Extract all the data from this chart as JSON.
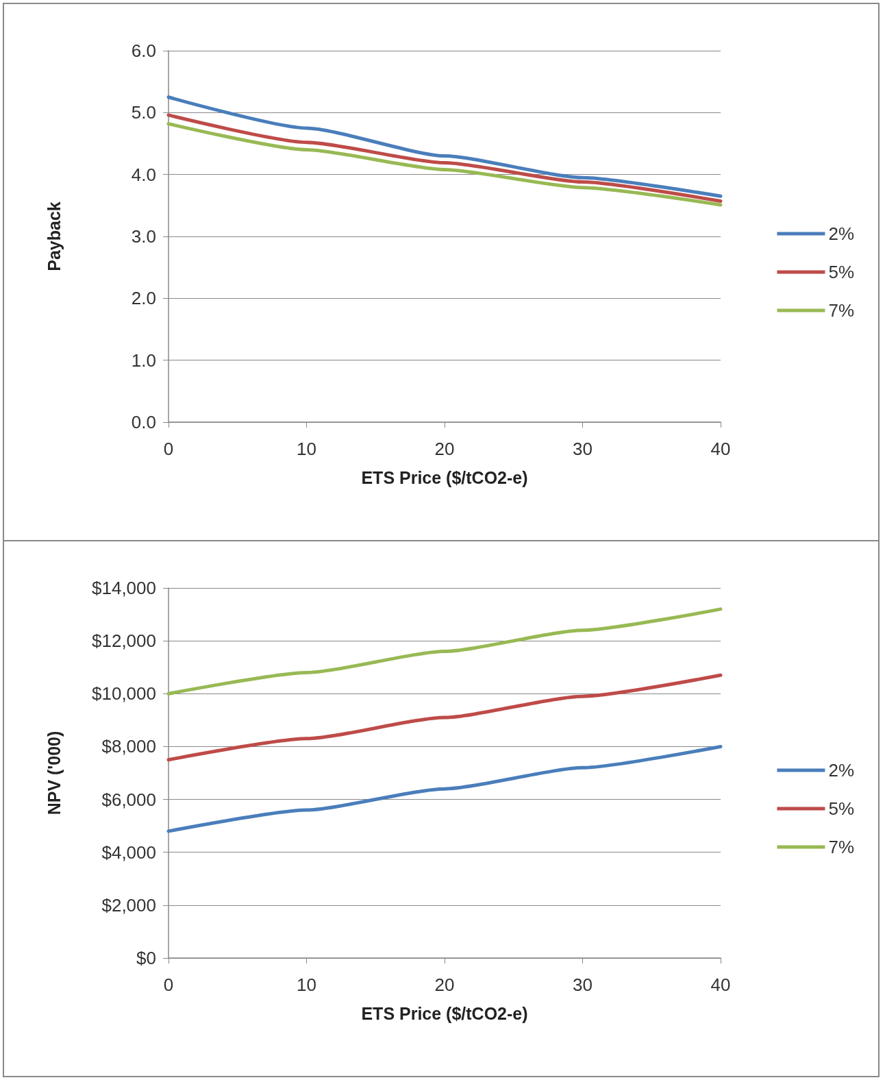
{
  "chart_data": [
    {
      "type": "line",
      "xlabel": "ETS Price ($/tCO2-e)",
      "ylabel": "Payback",
      "x": [
        0,
        10,
        20,
        30,
        40
      ],
      "series": [
        {
          "name": "2%",
          "color": "#4a7ebb",
          "values": [
            5.25,
            4.75,
            4.3,
            3.95,
            3.65
          ]
        },
        {
          "name": "5%",
          "color": "#be4b48",
          "values": [
            4.96,
            4.52,
            4.19,
            3.88,
            3.57
          ]
        },
        {
          "name": "7%",
          "color": "#98b954",
          "values": [
            4.82,
            4.4,
            4.08,
            3.79,
            3.51
          ]
        }
      ],
      "xlim": [
        0,
        40
      ],
      "xticks": [
        0,
        10,
        20,
        30,
        40
      ],
      "ylim": [
        0,
        6
      ],
      "yticks": [
        {
          "value": 0,
          "label": "0.0"
        },
        {
          "value": 1,
          "label": "1.0"
        },
        {
          "value": 2,
          "label": "2.0"
        },
        {
          "value": 3,
          "label": "3.0"
        },
        {
          "value": 4,
          "label": "4.0"
        },
        {
          "value": 5,
          "label": "5.0"
        },
        {
          "value": 6,
          "label": "6.0"
        }
      ],
      "grid": "y",
      "legend": "right",
      "marker": "none",
      "line_style": "solid"
    },
    {
      "type": "line",
      "xlabel": "ETS Price ($/tCO2-e)",
      "ylabel": "NPV ('000)",
      "x": [
        0,
        10,
        20,
        30,
        40
      ],
      "series": [
        {
          "name": "2%",
          "color": "#4a7ebb",
          "values": [
            4800,
            5600,
            6400,
            7200,
            8000
          ]
        },
        {
          "name": "5%",
          "color": "#be4b48",
          "values": [
            7500,
            8300,
            9100,
            9900,
            10700
          ]
        },
        {
          "name": "7%",
          "color": "#98b954",
          "values": [
            10000,
            10800,
            11600,
            12400,
            13200
          ]
        }
      ],
      "xlim": [
        0,
        40
      ],
      "xticks": [
        0,
        10,
        20,
        30,
        40
      ],
      "ylim": [
        0,
        14000
      ],
      "yticks": [
        {
          "value": 0,
          "label": "$0"
        },
        {
          "value": 2000,
          "label": "$2,000"
        },
        {
          "value": 4000,
          "label": "$4,000"
        },
        {
          "value": 6000,
          "label": "$6,000"
        },
        {
          "value": 8000,
          "label": "$8,000"
        },
        {
          "value": 10000,
          "label": "$10,000"
        },
        {
          "value": 12000,
          "label": "$12,000"
        },
        {
          "value": 14000,
          "label": "$14,000"
        }
      ],
      "grid": "y",
      "legend": "right",
      "marker": "none",
      "line_style": "solid"
    }
  ]
}
